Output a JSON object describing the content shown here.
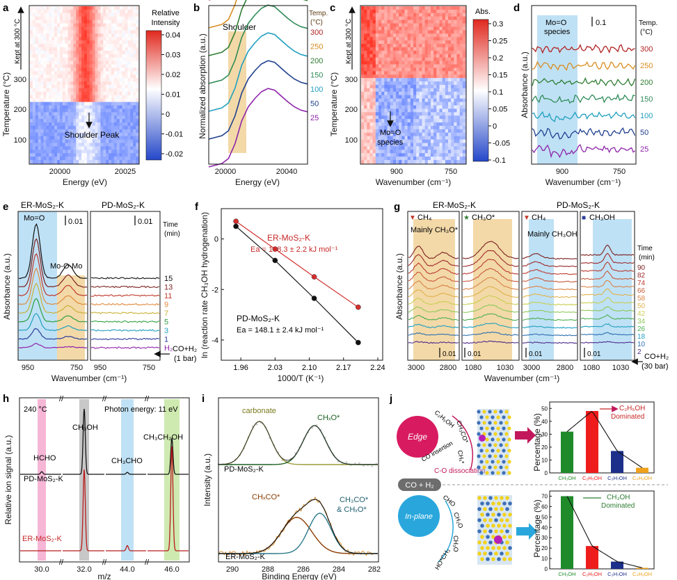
{
  "figure": {
    "panels": {
      "a": {
        "label": "a",
        "xlabel": "Energy (eV)",
        "ylabel": "Temperature (°C)",
        "yticks": [
          "100",
          "200",
          "300"
        ],
        "xticks": [
          "20000",
          "20025"
        ],
        "kept": "Kept at 300 °C",
        "annotation": "Shoulder Peak",
        "colorbar_title": [
          "Relative",
          "Intensity"
        ],
        "colorbar_ticks": [
          "0.04",
          "0.03",
          "0.02",
          "0.01",
          "0",
          "-0.01",
          "-0.02"
        ]
      },
      "b": {
        "label": "b",
        "xlabel": "Energy (eV)",
        "ylabel": "Normalized absorption (a.u.)",
        "xticks": [
          "20000",
          "20040"
        ],
        "annotation": "Shoulder",
        "legend_title": [
          "Temp.",
          "(°C)"
        ],
        "temps": [
          "300",
          "250",
          "200",
          "150",
          "100",
          "50",
          "25"
        ]
      },
      "c": {
        "label": "c",
        "xlabel": "Wavenumber (cm⁻¹)",
        "ylabel": "Temperature (°C)",
        "yticks": [
          "100",
          "200",
          "300"
        ],
        "xticks": [
          "900",
          "750"
        ],
        "kept": "Kept at 300 °C",
        "annotation": [
          "Mo=O",
          "species"
        ],
        "colorbar_title": "Abs.",
        "colorbar_ticks": [
          "0.3",
          "0.25",
          "0.2",
          "0.15",
          "0.1",
          "0.05",
          "0",
          "-0.05",
          "-0.1"
        ]
      },
      "d": {
        "label": "d",
        "xlabel": "Wavenumber (cm⁻¹)",
        "ylabel": "Absorbance (a.u.)",
        "xticks": [
          "900",
          "750"
        ],
        "annotation": [
          "Mo=O",
          "species"
        ],
        "scale": "0.1",
        "legend_title": [
          "Temp.",
          "(°C)"
        ],
        "temps": [
          "300",
          "250",
          "200",
          "150",
          "100",
          "50",
          "25"
        ]
      },
      "e": {
        "label": "e",
        "xlabel": "Wavenumber (cm⁻¹)",
        "ylabel": "Absorbance (a.u.)",
        "titles": [
          "ER-MoS₂-K",
          "PD-MoS₂-K"
        ],
        "xticks": [
          "950",
          "750"
        ],
        "mo_o": "Mo=O",
        "mo_o_mo": "Mo-O-Mo",
        "scale": "0.01",
        "time_title": [
          "Time",
          "(min)"
        ],
        "times": [
          "15",
          "13",
          "11",
          "9",
          "7",
          "5",
          "3",
          "1",
          "H₂"
        ],
        "feed": [
          "CO+H₂",
          "(1 bar)"
        ]
      },
      "f": {
        "label": "f",
        "xlabel": "1000/T (K⁻¹)",
        "ylabel": "ln (reaction rate CH₃OH hydrogenation)",
        "xticks": [
          "1.96",
          "2.03",
          "2.10",
          "2.17",
          "2.24"
        ],
        "yticks": [
          "0",
          "-2",
          "-4"
        ],
        "er_label": "ER-MoS₂-K",
        "er_ea": "Ea = 108.3 ± 2.2 kJ mol⁻¹",
        "pd_label": "PD-MoS₂-K",
        "pd_ea": "Ea = 148.1 ± 2.4 kJ mol⁻¹"
      },
      "g": {
        "label": "g",
        "xlabel": "Wavenumber (cm⁻¹)",
        "ylabel": "Absorbance (a.u.)",
        "titles": [
          "ER-MoS₂-K",
          "PD-MoS₂-K"
        ],
        "xticks": [
          "3000",
          "2800",
          "1080",
          "1030",
          "3000",
          "2800",
          "1080",
          "1030"
        ],
        "legend": [
          "CH₄",
          "CH₃O*",
          "CH₄",
          "CH₃OH"
        ],
        "shade_labels": [
          "Mainly CH₃O*",
          "Mainly CH₃OH"
        ],
        "scale": "0.01",
        "time_title": [
          "Time",
          "(min)"
        ],
        "times": [
          "90",
          "82",
          "74",
          "66",
          "58",
          "50",
          "42",
          "34",
          "26",
          "18",
          "10",
          "2"
        ],
        "feed": [
          "CO+H₂",
          "(30 bar)"
        ]
      },
      "h": {
        "label": "h",
        "xlabel": "m/z",
        "ylabel": "Relative ion signal (a.u.)",
        "temp": "240 °C",
        "photon": "Photon energy: 11 eV",
        "xticks": [
          "30.0",
          "32.0",
          "44.0",
          "46.0"
        ],
        "species": [
          "HCHO",
          "CH₃OH",
          "CH₃CHO",
          "CH₃CH₂OH"
        ],
        "pd_label": "PD-MoS₂-K",
        "er_label": "ER-MoS₂-K"
      },
      "i": {
        "label": "i",
        "xlabel": "Binding Energy (eV)",
        "ylabel": "Intensity (a.u.)",
        "xticks": [
          "290",
          "288",
          "286",
          "284",
          "282"
        ],
        "carbonate": "carbonate",
        "chxo": "CHₓO*",
        "pd_label": "PD-MoS₂-K",
        "chxco": "CHₓCO*",
        "ch3co": "CH₃CO*",
        "and_chxo": "& CHₓO*",
        "er_label": "ER-MoS₂-K"
      },
      "j": {
        "label": "j",
        "edge": "Edge",
        "inplane": "In-plane",
        "coh2": "CO + H₂",
        "edge_species": [
          "C₂H₅OH",
          "CH₃CO*",
          "CHₓ*"
        ],
        "co_insertion": "CO insertion",
        "co_dissociation": "C-O dissociation",
        "inplane_species": [
          "CHO",
          "CH₂O",
          "CH₃O",
          "HO*CH₃"
        ],
        "ylabel": "Percentage (%)",
        "yticks_top": [
          "0",
          "10",
          "20",
          "30",
          "40",
          "50"
        ],
        "yticks_bottom": [
          "0",
          "10",
          "20",
          "30",
          "40",
          "50",
          "60",
          "70"
        ],
        "categories": [
          "CH₃OH",
          "C₂H₅OH",
          "C₃H₇OH",
          "C₄H₉OH"
        ],
        "top_note": [
          "C₂H₅OH",
          "Dominated"
        ],
        "bottom_note": [
          "CH₃OH",
          "Dominated"
        ],
        "bar_colors": [
          "#1e8a2a",
          "#ef1c1c",
          "#1c2f8a",
          "#f0a21c"
        ]
      }
    }
  },
  "chart_data": [
    {
      "type": "heatmap",
      "panel": "a",
      "title": "",
      "xlabel": "Energy (eV)",
      "ylabel": "Temperature (°C)",
      "xlim": [
        19975,
        20035
      ],
      "ylim": [
        25,
        420
      ],
      "zlim": [
        -0.02,
        0.04
      ]
    },
    {
      "type": "line",
      "panel": "b",
      "xlabel": "Energy (eV)",
      "ylabel": "Normalized absorption (a.u.)",
      "xlim": [
        19985,
        20060
      ],
      "x": [
        19985,
        19995,
        20000,
        20005,
        20010,
        20015,
        20020,
        20025,
        20030,
        20035,
        20040,
        20045,
        20050,
        20055,
        20060
      ],
      "series": [
        {
          "name": "300",
          "color": "#b22222"
        },
        {
          "name": "250",
          "color": "#d98c1f"
        },
        {
          "name": "200",
          "color": "#2e7d32"
        },
        {
          "name": "150",
          "color": "#2e8b57"
        },
        {
          "name": "100",
          "color": "#1f9fbf"
        },
        {
          "name": "50",
          "color": "#1f3f8f"
        },
        {
          "name": "25",
          "color": "#8e24aa"
        }
      ],
      "shape": [
        0.0,
        0.04,
        0.1,
        0.28,
        0.55,
        0.72,
        0.82,
        0.9,
        0.94,
        0.92,
        0.85,
        0.78,
        0.72,
        0.68,
        0.66
      ]
    },
    {
      "type": "heatmap",
      "panel": "c",
      "xlabel": "Wavenumber (cm⁻¹)",
      "ylabel": "Temperature (°C)",
      "xlim": [
        1000,
        700
      ],
      "ylim": [
        25,
        420
      ],
      "zlim": [
        -0.1,
        0.3
      ]
    },
    {
      "type": "line",
      "panel": "d",
      "xlabel": "Wavenumber (cm⁻¹)",
      "ylabel": "Absorbance (a.u.)",
      "xlim": [
        1000,
        700
      ],
      "series": [
        {
          "name": "300",
          "color": "#b22222"
        },
        {
          "name": "250",
          "color": "#d98c1f"
        },
        {
          "name": "200",
          "color": "#2e7d32"
        },
        {
          "name": "150",
          "color": "#2e8b57"
        },
        {
          "name": "100",
          "color": "#1f9fbf"
        },
        {
          "name": "50",
          "color": "#1f3f8f"
        },
        {
          "name": "25",
          "color": "#8e24aa"
        }
      ]
    },
    {
      "type": "line",
      "panel": "e",
      "xlabel": "Wavenumber (cm⁻¹)",
      "ylabel": "Absorbance (a.u.)",
      "xlim": [
        1000,
        700
      ],
      "series": [
        {
          "name": "15",
          "color": "#111111"
        },
        {
          "name": "13",
          "color": "#7a1f1f"
        },
        {
          "name": "11",
          "color": "#c0392b"
        },
        {
          "name": "9",
          "color": "#e08a3c"
        },
        {
          "name": "7",
          "color": "#c9b037"
        },
        {
          "name": "5",
          "color": "#2e9e3e"
        },
        {
          "name": "3",
          "color": "#1f9fbf"
        },
        {
          "name": "1",
          "color": "#2a3c9a"
        },
        {
          "name": "H₂",
          "color": "#8e24aa"
        }
      ]
    },
    {
      "type": "scatter",
      "panel": "f",
      "xlabel": "1000/T (K⁻¹)",
      "ylabel": "ln (reaction rate CH₃OH hydrogenation)",
      "xlim": [
        1.92,
        2.25
      ],
      "ylim": [
        -4.8,
        1.2
      ],
      "series": [
        {
          "name": "ER-MoS₂-K",
          "color": "#d32f2f",
          "x": [
            1.95,
            2.03,
            2.11,
            2.2
          ],
          "y": [
            0.7,
            -0.4,
            -1.5,
            -2.7
          ]
        },
        {
          "name": "PD-MoS₂-K",
          "color": "#111111",
          "x": [
            1.95,
            2.03,
            2.11,
            2.2
          ],
          "y": [
            0.5,
            -0.85,
            -2.35,
            -4.1
          ]
        }
      ]
    },
    {
      "type": "line",
      "panel": "g",
      "xlabel": "Wavenumber (cm⁻¹)",
      "ylabel": "Absorbance (a.u.)",
      "series_times": [
        "90",
        "82",
        "74",
        "66",
        "58",
        "50",
        "42",
        "34",
        "26",
        "18",
        "10",
        "2"
      ]
    },
    {
      "type": "line",
      "panel": "h",
      "xlabel": "m/z",
      "ylabel": "Relative ion signal (a.u.)",
      "peaks": [
        {
          "mz": 30.0,
          "species": "HCHO",
          "pd": 0.04,
          "er": 0.0
        },
        {
          "mz": 32.0,
          "species": "CH₃OH",
          "pd": 1.0,
          "er": 0.78
        },
        {
          "mz": 44.0,
          "species": "CH₃CHO",
          "pd": 0.03,
          "er": 0.05
        },
        {
          "mz": 46.0,
          "species": "CH₃CH₂OH",
          "pd": 0.55,
          "er": 1.0
        }
      ]
    },
    {
      "type": "line",
      "panel": "i",
      "xlabel": "Binding Energy (eV)",
      "ylabel": "Intensity (a.u.)",
      "xlim": [
        291,
        282
      ],
      "pd_peaks": [
        {
          "name": "carbonate",
          "center": 288.7
        },
        {
          "name": "CHₓO*",
          "center": 285.6
        }
      ],
      "er_peaks": [
        {
          "name": "CHₓCO*",
          "center": 286.6
        },
        {
          "name": "CH₃CO* & CHₓO*",
          "center": 285.3
        }
      ]
    },
    {
      "type": "bar",
      "panel": "j-top",
      "categories": [
        "CH₃OH",
        "C₂H₅OH",
        "C₃H₇OH",
        "C₄H₉OH"
      ],
      "values": [
        32,
        48,
        17,
        4
      ],
      "ylabel": "Percentage (%)",
      "ylim": [
        0,
        55
      ]
    },
    {
      "type": "bar",
      "panel": "j-bottom",
      "categories": [
        "CH₃OH",
        "C₂H₅OH",
        "C₃H₇OH",
        "C₄H₉OH"
      ],
      "values": [
        70,
        22,
        7,
        1
      ],
      "ylabel": "Percentage (%)",
      "ylim": [
        0,
        75
      ]
    }
  ]
}
